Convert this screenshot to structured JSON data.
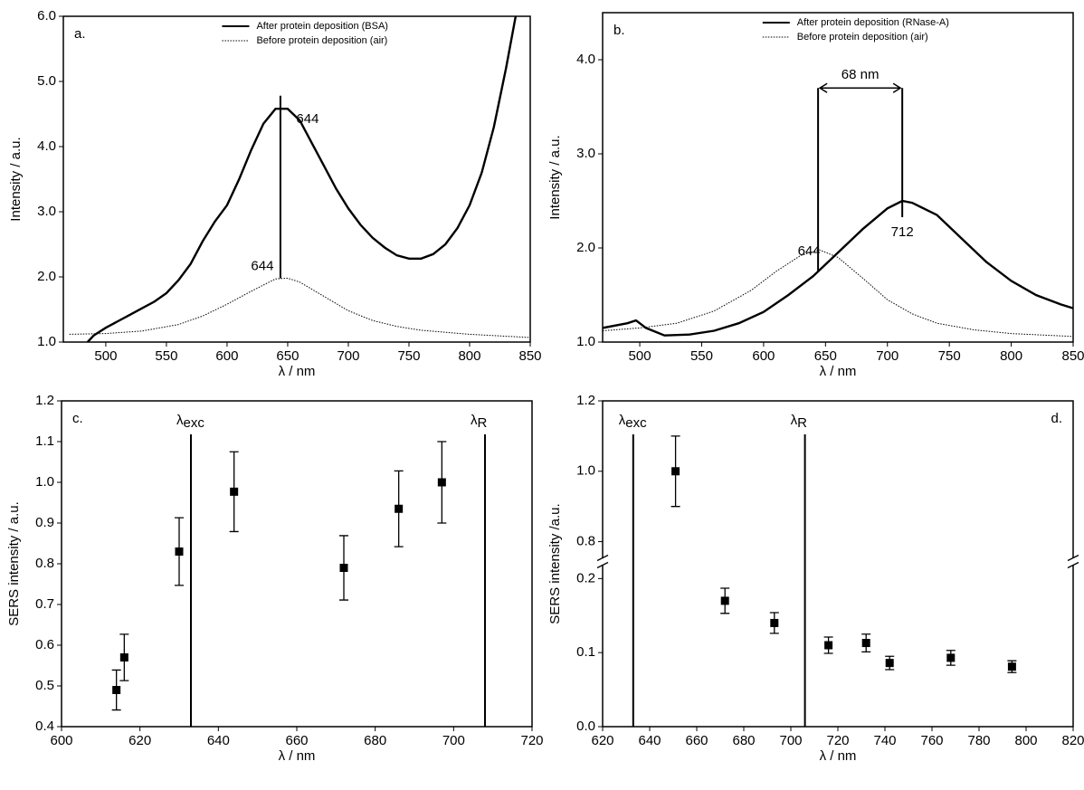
{
  "chart_data": [
    {
      "type": "line",
      "panel": "a.",
      "xlabel": "λ / nm",
      "ylabel": "Intensity / a.u.",
      "xlim": [
        465,
        850
      ],
      "xticks": [
        500,
        550,
        600,
        650,
        700,
        750,
        800,
        850
      ],
      "ylim": [
        1,
        6
      ],
      "yticks": [
        {
          "value": 1,
          "label": "1.0"
        },
        {
          "value": 2,
          "label": "2.0"
        },
        {
          "value": 3,
          "label": "3.0"
        },
        {
          "value": 4,
          "label": "4.0"
        },
        {
          "value": 5,
          "label": "5.0"
        },
        {
          "value": 6,
          "label": "6.0"
        }
      ],
      "series": [
        {
          "name": "After protein deposition (BSA)",
          "line_style": "solid",
          "color": "#000000",
          "x": [
            485,
            490,
            500,
            510,
            520,
            530,
            540,
            550,
            560,
            570,
            580,
            590,
            600,
            610,
            620,
            630,
            640,
            650,
            660,
            670,
            680,
            690,
            700,
            710,
            720,
            730,
            740,
            750,
            760,
            770,
            780,
            790,
            800,
            810,
            820,
            830,
            838
          ],
          "values": [
            1.0,
            1.1,
            1.22,
            1.32,
            1.42,
            1.52,
            1.62,
            1.75,
            1.95,
            2.2,
            2.55,
            2.85,
            3.1,
            3.5,
            3.95,
            4.35,
            4.58,
            4.58,
            4.4,
            4.05,
            3.7,
            3.35,
            3.05,
            2.8,
            2.6,
            2.45,
            2.33,
            2.28,
            2.28,
            2.35,
            2.5,
            2.75,
            3.1,
            3.6,
            4.3,
            5.2,
            6.0
          ]
        },
        {
          "name": "Before protein deposition (air)",
          "line_style": "dotted",
          "color": "#000000",
          "x": [
            470,
            500,
            530,
            560,
            580,
            600,
            620,
            640,
            650,
            660,
            680,
            700,
            720,
            740,
            760,
            800,
            850
          ],
          "values": [
            1.12,
            1.13,
            1.17,
            1.27,
            1.4,
            1.58,
            1.78,
            1.97,
            1.98,
            1.92,
            1.7,
            1.48,
            1.33,
            1.24,
            1.18,
            1.12,
            1.07
          ]
        }
      ],
      "peaks": [
        {
          "label": "644",
          "x": 644,
          "y": 4.6
        },
        {
          "label": "644",
          "x": 644,
          "y": 1.98
        }
      ]
    },
    {
      "type": "line",
      "panel": "b.",
      "xlabel": "λ / nm",
      "ylabel": "Intensity / a.u.",
      "xlim": [
        470,
        850
      ],
      "xticks": [
        500,
        550,
        600,
        650,
        700,
        750,
        800,
        850
      ],
      "ylim": [
        1,
        4.5
      ],
      "yticks": [
        {
          "value": 1,
          "label": "1.0"
        },
        {
          "value": 2,
          "label": "2.0"
        },
        {
          "value": 3,
          "label": "3.0"
        },
        {
          "value": 4,
          "label": "4.0"
        }
      ],
      "series": [
        {
          "name": "After protein deposition (RNase-A)",
          "line_style": "solid",
          "color": "#000000",
          "x": [
            470,
            490,
            497,
            505,
            520,
            540,
            560,
            580,
            600,
            620,
            640,
            660,
            680,
            700,
            712,
            720,
            740,
            760,
            780,
            800,
            820,
            840,
            850
          ],
          "values": [
            1.15,
            1.2,
            1.23,
            1.15,
            1.07,
            1.08,
            1.12,
            1.2,
            1.32,
            1.5,
            1.7,
            1.95,
            2.2,
            2.42,
            2.5,
            2.48,
            2.35,
            2.1,
            1.85,
            1.65,
            1.5,
            1.4,
            1.36
          ]
        },
        {
          "name": "Before protein deposition (air)",
          "line_style": "dotted",
          "color": "#000000",
          "x": [
            470,
            500,
            530,
            560,
            590,
            610,
            630,
            645,
            660,
            680,
            700,
            720,
            740,
            770,
            800,
            850
          ],
          "values": [
            1.12,
            1.15,
            1.2,
            1.33,
            1.55,
            1.75,
            1.92,
            1.98,
            1.9,
            1.68,
            1.45,
            1.3,
            1.2,
            1.13,
            1.09,
            1.06
          ]
        }
      ],
      "peaks": [
        {
          "label": "644",
          "x": 644,
          "y": 1.98
        },
        {
          "label": "712",
          "x": 712,
          "y": 2.5
        }
      ],
      "shift_label": "68 nm"
    },
    {
      "type": "errorbar",
      "panel": "c.",
      "xlabel": "λ / nm",
      "ylabel": "SERS intensity / a.u.",
      "xlim": [
        600,
        720
      ],
      "xticks": [
        600,
        620,
        640,
        660,
        680,
        700,
        720
      ],
      "ylim": [
        0.4,
        1.2
      ],
      "yticks": [
        0.4,
        0.5,
        0.6,
        0.7,
        0.8,
        0.9,
        {
          "value": 1,
          "label": "1.0"
        },
        1.1,
        1.2
      ],
      "x": [
        614,
        616,
        630,
        644,
        672,
        686,
        697
      ],
      "values": [
        0.49,
        0.57,
        0.83,
        0.977,
        0.79,
        0.935,
        1.0
      ],
      "errors": [
        0.049,
        0.057,
        0.083,
        0.098,
        0.079,
        0.093,
        0.1
      ],
      "vlines": [
        {
          "symbol": "λ",
          "sub": "exc",
          "x": 633
        },
        {
          "symbol": "λ",
          "sub": "R",
          "x": 708
        }
      ]
    },
    {
      "type": "errorbar",
      "panel": "d.",
      "xlabel": "λ / nm",
      "ylabel": "SERS intensity /a.u.",
      "xlim": [
        620,
        820
      ],
      "xticks": [
        620,
        640,
        660,
        680,
        700,
        720,
        740,
        760,
        780,
        800,
        820
      ],
      "ylim": [
        0,
        1.2
      ],
      "ybreak": [
        0.22,
        0.75
      ],
      "yticks": [
        {
          "value": 0,
          "label": "0.0"
        },
        0.1,
        0.2,
        0.8,
        {
          "value": 1,
          "label": "1.0"
        },
        1.2
      ],
      "x": [
        651,
        672,
        693,
        716,
        732,
        742,
        768,
        794
      ],
      "values": [
        1.0,
        0.17,
        0.14,
        0.11,
        0.113,
        0.086,
        0.093,
        0.081
      ],
      "errors": [
        0.1,
        0.017,
        0.014,
        0.011,
        0.012,
        0.009,
        0.01,
        0.008
      ],
      "vlines": [
        {
          "symbol": "λ",
          "sub": "exc",
          "x": 633
        },
        {
          "symbol": "λ",
          "sub": "R",
          "x": 706
        }
      ]
    }
  ]
}
